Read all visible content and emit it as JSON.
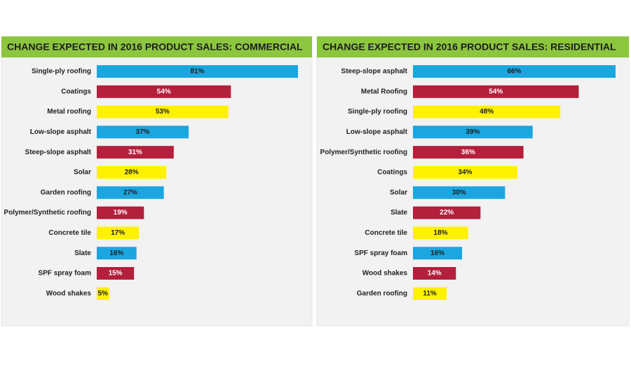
{
  "chart_data": [
    {
      "type": "bar",
      "orientation": "horizontal",
      "title": "CHANGE EXPECTED IN 2016 PRODUCT SALES: COMMERCIAL",
      "categories": [
        "Single-ply roofing",
        "Coatings",
        "Metal roofing",
        "Low-slope asphalt",
        "Steep-slope asphalt",
        "Solar",
        "Garden roofing",
        "Polymer/Synthetic roofing",
        "Concrete tile",
        "Slate",
        "SPF spray foam",
        "Wood shakes"
      ],
      "values": [
        81,
        54,
        53,
        37,
        31,
        28,
        27,
        19,
        17,
        16,
        15,
        5
      ],
      "value_labels": [
        "81%",
        "54%",
        "53%",
        "37%",
        "31%",
        "28%",
        "27%",
        "19%",
        "17%",
        "16%",
        "15%",
        "5%"
      ],
      "colors": [
        "#1ba6e0",
        "#b41f3b",
        "#fff200",
        "#1ba6e0",
        "#b41f3b",
        "#fff200",
        "#1ba6e0",
        "#b41f3b",
        "#fff200",
        "#1ba6e0",
        "#b41f3b",
        "#fff200"
      ]
    },
    {
      "type": "bar",
      "orientation": "horizontal",
      "title": "CHANGE EXPECTED IN 2016 PRODUCT SALES: RESIDENTIAL",
      "categories": [
        "Steep-slope asphalt",
        "Metal Roofing",
        "Single-ply roofing",
        "Low-slope asphalt",
        "Polymer/Synthetic roofing",
        "Coatings",
        "Solar",
        "Slate",
        "Concrete tile",
        "SPF spray foam",
        "Wood shakes",
        "Garden roofing"
      ],
      "values": [
        66,
        54,
        48,
        39,
        36,
        34,
        30,
        22,
        18,
        16,
        14,
        11
      ],
      "value_labels": [
        "66%",
        "54%",
        "48%",
        "39%",
        "36%",
        "34%",
        "30%",
        "22%",
        "18%",
        "16%",
        "14%",
        "11%"
      ],
      "colors": [
        "#1ba6e0",
        "#b41f3b",
        "#fff200",
        "#1ba6e0",
        "#b41f3b",
        "#fff200",
        "#1ba6e0",
        "#b41f3b",
        "#fff200",
        "#1ba6e0",
        "#b41f3b",
        "#fff200"
      ]
    }
  ]
}
